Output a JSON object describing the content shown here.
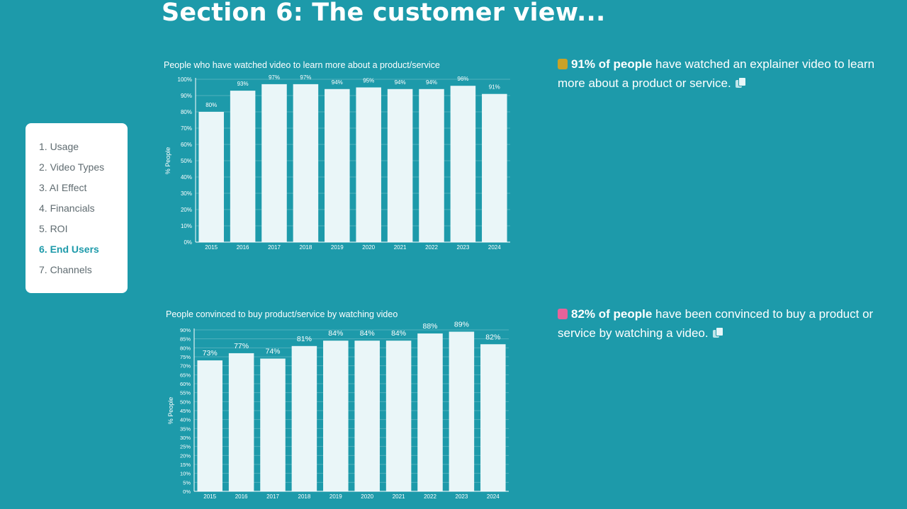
{
  "page": {
    "title": "Section 6: The customer view..."
  },
  "nav": {
    "items": [
      {
        "label": "1. Usage",
        "active": false
      },
      {
        "label": "2. Video Types",
        "active": false
      },
      {
        "label": "3. AI Effect",
        "active": false
      },
      {
        "label": "4. Financials",
        "active": false
      },
      {
        "label": "5. ROI",
        "active": false
      },
      {
        "label": "6. End Users",
        "active": true
      },
      {
        "label": "7. Channels",
        "active": false
      }
    ]
  },
  "stats": [
    {
      "icon": "graduation-cap-icon",
      "bold": "91% of people",
      "text": " have watched an explainer video to learn more about a product or service."
    },
    {
      "icon": "shopping-bags-icon",
      "bold": "82% of people",
      "text": " have been convinced to buy a product or service by watching a video."
    }
  ],
  "colors": {
    "background": "#1d9aaa",
    "bar": "#eaf6f8",
    "nav_active": "#1d9aaa"
  },
  "chart_data": [
    {
      "type": "bar",
      "title": "People who have watched video to learn more about a product/service",
      "ylabel": "% People",
      "xlabel": "",
      "categories": [
        "2015",
        "2016",
        "2017",
        "2018",
        "2019",
        "2020",
        "2021",
        "2022",
        "2023",
        "2024"
      ],
      "values": [
        80,
        93,
        97,
        97,
        94,
        95,
        94,
        94,
        96,
        91
      ],
      "data_labels": [
        "80%",
        "93%",
        "97%",
        "97%",
        "94%",
        "95%",
        "94%",
        "94%",
        "96%",
        "91%"
      ],
      "ylim": [
        0,
        100
      ],
      "yticks": [
        0,
        10,
        20,
        30,
        40,
        50,
        60,
        70,
        80,
        90,
        100
      ],
      "ytick_labels": [
        "0%",
        "10%",
        "20%",
        "30%",
        "40%",
        "50%",
        "60%",
        "70%",
        "80%",
        "90%",
        "100%"
      ],
      "grid": true,
      "legend": "none"
    },
    {
      "type": "bar",
      "title": "People convinced to buy product/service by watching video",
      "ylabel": "% People",
      "xlabel": "",
      "categories": [
        "2015",
        "2016",
        "2017",
        "2018",
        "2019",
        "2020",
        "2021",
        "2022",
        "2023",
        "2024"
      ],
      "values": [
        73,
        77,
        74,
        81,
        84,
        84,
        84,
        88,
        89,
        82
      ],
      "data_labels": [
        "73%",
        "77%",
        "74%",
        "81%",
        "84%",
        "84%",
        "84%",
        "88%",
        "89%",
        "82%"
      ],
      "ylim": [
        0,
        90
      ],
      "yticks": [
        0,
        5,
        10,
        15,
        20,
        25,
        30,
        35,
        40,
        45,
        50,
        55,
        60,
        65,
        70,
        75,
        80,
        85,
        90
      ],
      "ytick_labels": [
        "0%",
        "5%",
        "10%",
        "15%",
        "20%",
        "25%",
        "30%",
        "35%",
        "40%",
        "45%",
        "50%",
        "55%",
        "60%",
        "65%",
        "70%",
        "75%",
        "80%",
        "85%",
        "90%"
      ],
      "grid": true,
      "legend": "none"
    }
  ]
}
